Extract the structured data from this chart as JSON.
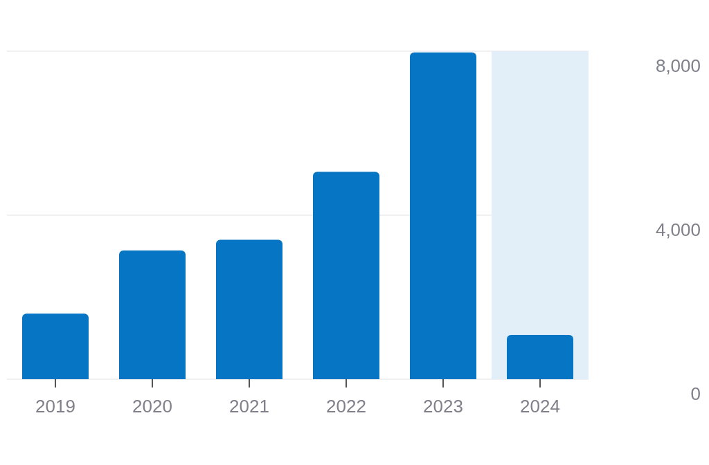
{
  "chart_data": {
    "type": "bar",
    "categories": [
      "2019",
      "2020",
      "2021",
      "2022",
      "2023",
      "2024"
    ],
    "values": [
      1600,
      3140,
      3400,
      5060,
      7970,
      1080
    ],
    "color": "#0675c4",
    "ylim": [
      0,
      8000
    ],
    "yticks": [
      0,
      {
        "value": 4000,
        "label": "4,000"
      },
      {
        "value": 8000,
        "label": "8,000"
      }
    ],
    "grid": "y",
    "bands": [
      {
        "axis": "x",
        "from": "2024",
        "to": "2024",
        "color": "#e3eff8"
      }
    ]
  }
}
